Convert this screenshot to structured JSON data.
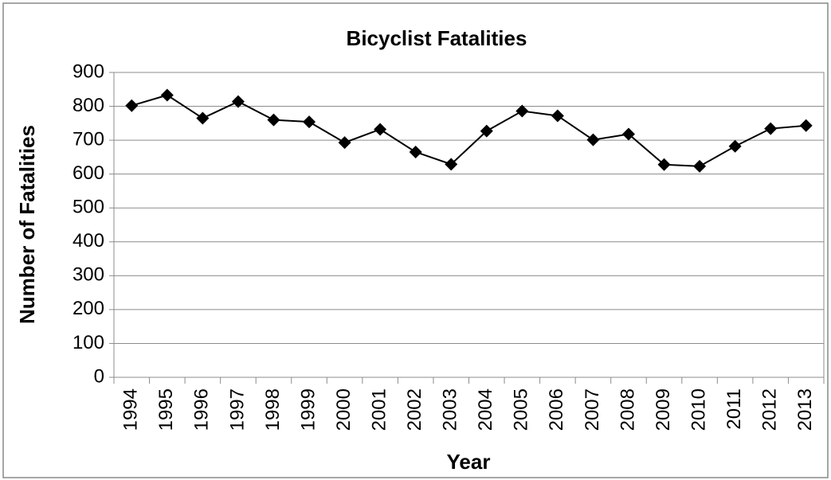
{
  "chart_data": {
    "type": "line",
    "title": "Bicyclist Fatalities",
    "x_label": "Year",
    "y_label": "Number of Fatalities",
    "categories": [
      "1994",
      "1995",
      "1996",
      "1997",
      "1998",
      "1999",
      "2000",
      "2001",
      "2002",
      "2003",
      "2004",
      "2005",
      "2006",
      "2007",
      "2008",
      "2009",
      "2010",
      "2011",
      "2012",
      "2013"
    ],
    "values": [
      802,
      833,
      765,
      814,
      760,
      754,
      693,
      732,
      665,
      629,
      727,
      786,
      772,
      701,
      718,
      628,
      623,
      682,
      734,
      743
    ],
    "color": "#000000",
    "ylim": [
      0,
      900
    ],
    "yticks": [
      0,
      100,
      200,
      300,
      400,
      500,
      600,
      700,
      800,
      900
    ],
    "grid": true
  }
}
